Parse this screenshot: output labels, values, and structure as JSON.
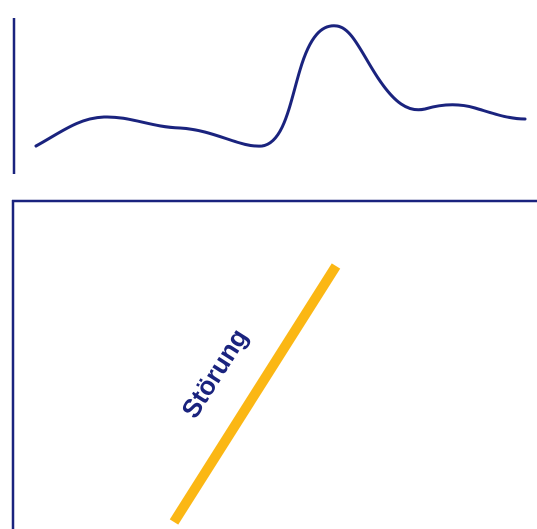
{
  "colors": {
    "ink": "#1a237e",
    "accent": "#fbb714",
    "background": "#ffffff"
  },
  "disturbance": {
    "label": "Störung"
  }
}
